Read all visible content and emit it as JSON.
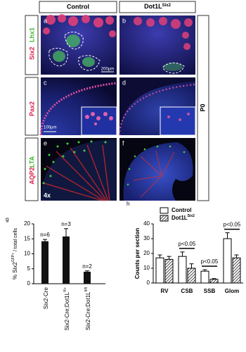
{
  "figure": {
    "columns": [
      {
        "text": "Control"
      },
      {
        "text": "Dot1L",
        "sup": "Six2"
      }
    ],
    "age": "P0",
    "rows": [
      {
        "labels": [
          {
            "text": "Six2",
            "color": "#d8204a"
          },
          {
            "text": "Lhx1",
            "color": "#3cb82a"
          }
        ],
        "panels": [
          "a",
          "b"
        ],
        "scale_bar": "200μm"
      },
      {
        "labels": [
          {
            "text": "Pax2",
            "color": "#d8204a"
          }
        ],
        "panels": [
          "c",
          "d"
        ],
        "scale_bar": "100μm"
      },
      {
        "labels": [
          {
            "text": "AQP2",
            "color": "#d8204a"
          },
          {
            "text": "LTA",
            "color": "#3cb82a"
          }
        ],
        "panels": [
          "e",
          "f"
        ],
        "magnification": "4x"
      }
    ]
  },
  "chart_data": [
    {
      "type": "bar",
      "panel": "g",
      "ylabel": {
        "text": "% Six2",
        "sup": "GFP+",
        "tail": " / total cells"
      },
      "categories": [
        {
          "text": "Six2-Cre"
        },
        {
          "text": "Six2-Cre;Dot1L",
          "sup": "fl/+"
        },
        {
          "text": "Six2-Cre;Dot1L",
          "sup": "fl/fl"
        }
      ],
      "values": [
        14.2,
        15.8,
        4.0
      ],
      "errors": [
        0.6,
        2.6,
        0.3
      ],
      "color": "#111111",
      "n_labels": [
        "n=6",
        "n=3",
        "n=2"
      ],
      "ylim": [
        0,
        20
      ],
      "yticks": [
        0,
        5,
        10,
        15,
        20
      ]
    },
    {
      "type": "grouped_bar",
      "panel": "h",
      "ylabel": "Counts per section",
      "categories": [
        "RV",
        "CSB",
        "SSB",
        "Glom"
      ],
      "series": [
        {
          "name": {
            "text": "Control"
          },
          "color": "#ffffff",
          "values": [
            17,
            18,
            8,
            30
          ],
          "errors": [
            2,
            3,
            1,
            4
          ]
        },
        {
          "name": {
            "text": "Dot1L",
            "sup": "Six2"
          },
          "color": "#333333",
          "values": [
            16,
            10,
            2.5,
            17
          ],
          "errors": [
            2,
            3,
            0.5,
            2
          ]
        }
      ],
      "significance": [
        null,
        "p<0.05",
        "p<0.05",
        "p<0.05"
      ],
      "ylim": [
        0,
        40
      ],
      "yticks": [
        0,
        10,
        20,
        30,
        40
      ]
    }
  ]
}
